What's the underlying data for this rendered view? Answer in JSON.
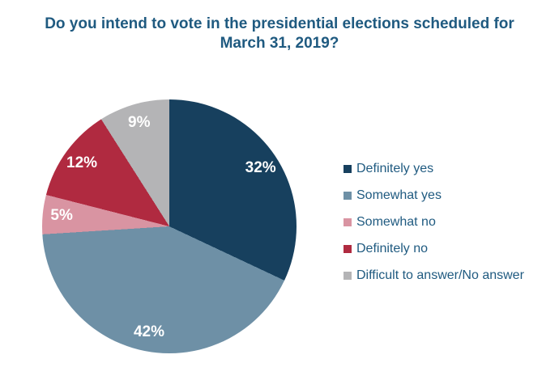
{
  "title": {
    "lines": [
      "Do you intend to vote in the presidential elections scheduled for",
      "March 31, 2019?"
    ],
    "color": "#1f5a80"
  },
  "chart_data": {
    "type": "pie",
    "title": "Do you intend to vote in the presidential elections scheduled for March 31, 2019?",
    "start_angle_deg": 0,
    "direction": "clockwise",
    "legend_position": "right",
    "background": "#ffffff",
    "data_label_color": "#ffffff",
    "slices": [
      {
        "label": "Definitely yes",
        "value": 32,
        "display": "32%",
        "color": "#17405e"
      },
      {
        "label": "Somewhat yes",
        "value": 42,
        "display": "42%",
        "color": "#6e90a6"
      },
      {
        "label": "Somewhat no",
        "value": 5,
        "display": "5%",
        "color": "#d994a2"
      },
      {
        "label": "Definitely no",
        "value": 12,
        "display": "12%",
        "color": "#b02a40"
      },
      {
        "label": "Difficult to answer/No answer",
        "value": 9,
        "display": "9%",
        "color": "#b4b4b6"
      }
    ]
  }
}
